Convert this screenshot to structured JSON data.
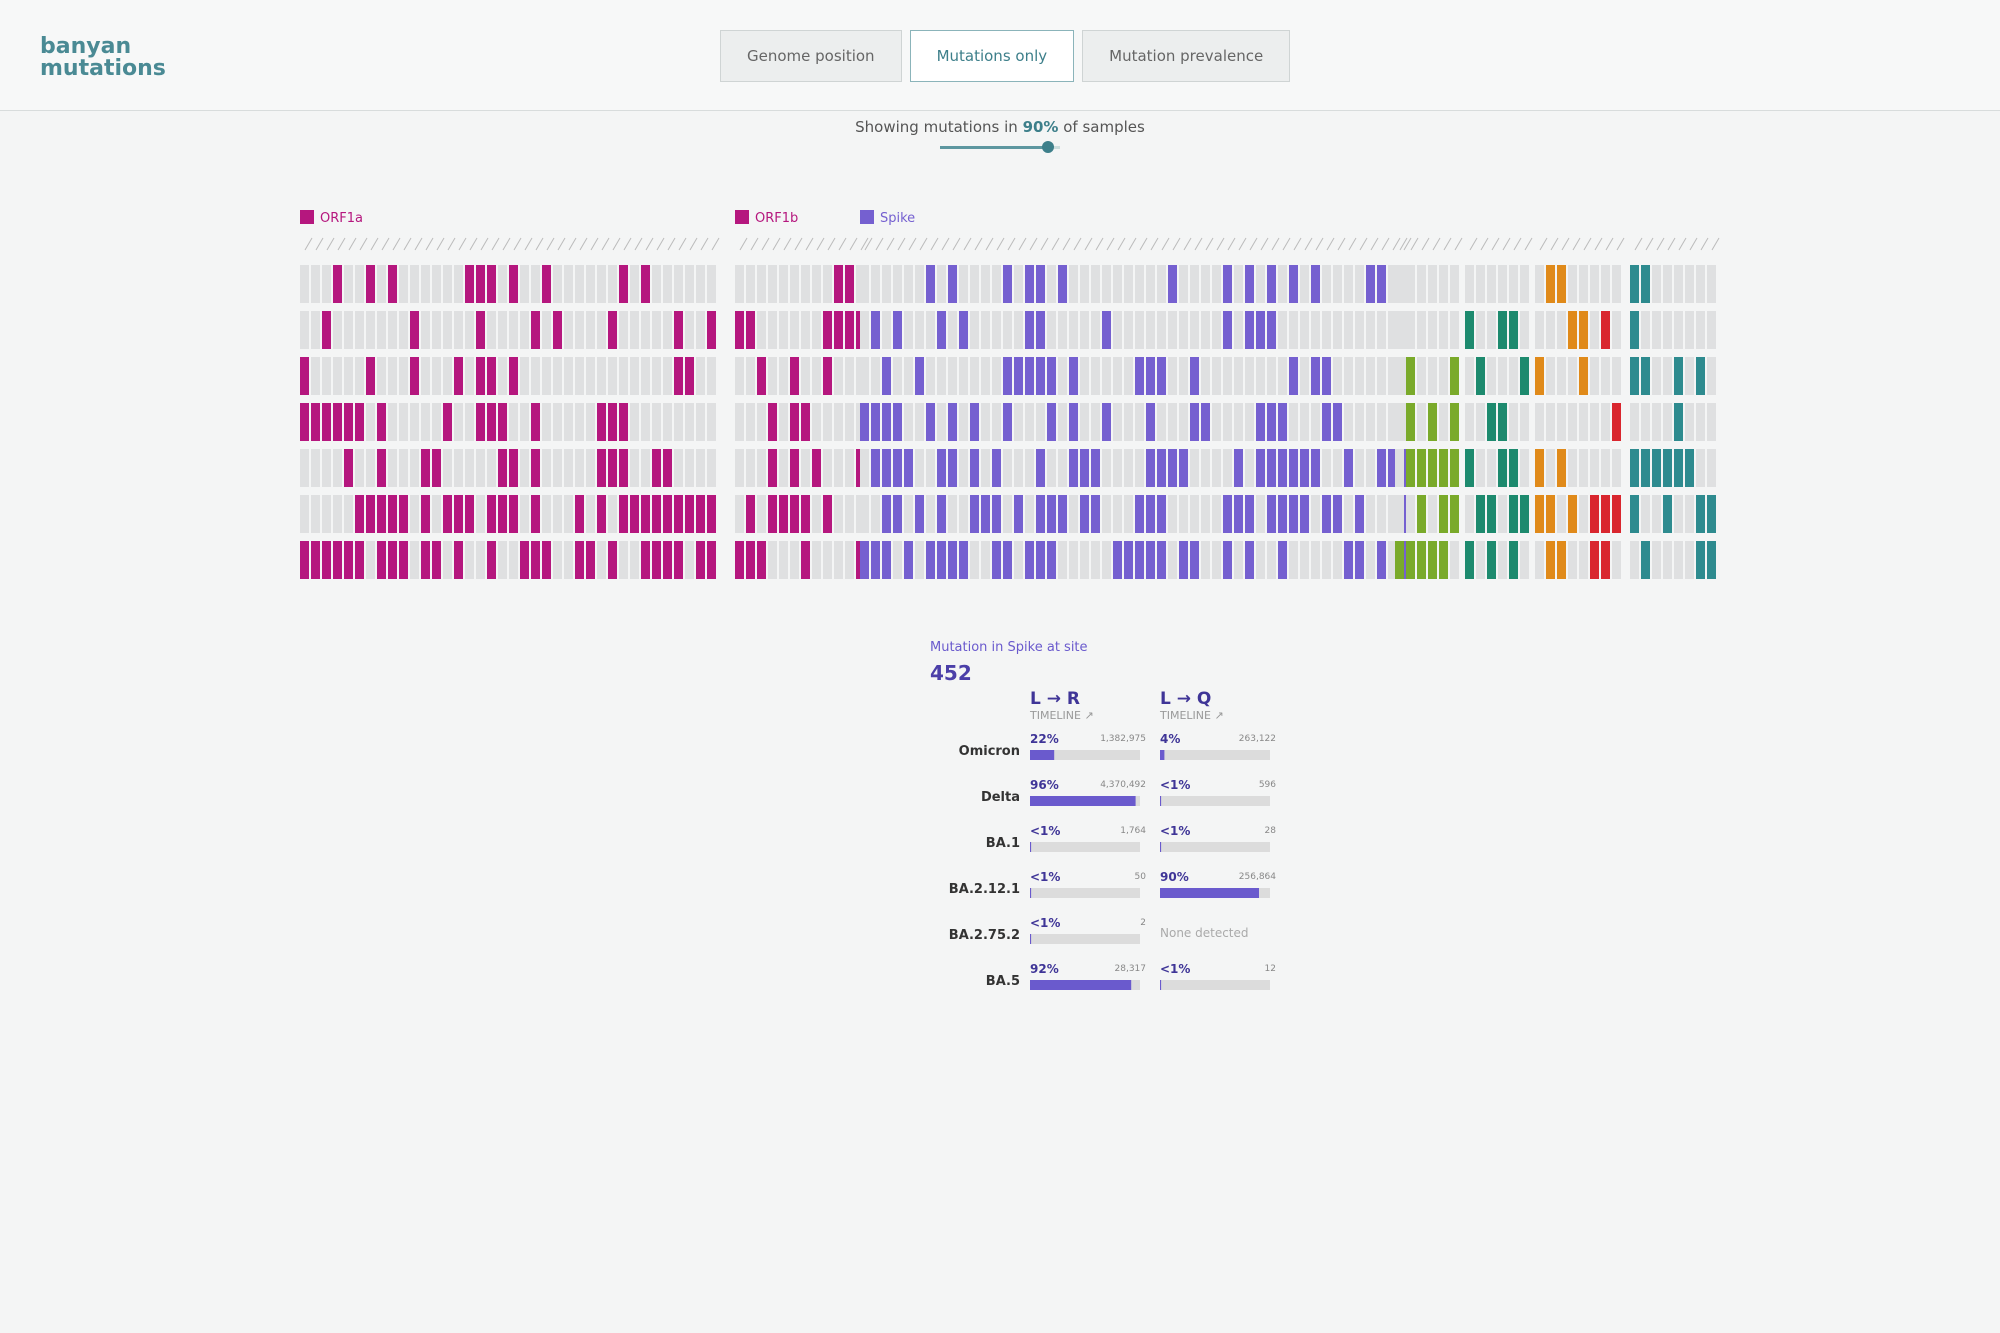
{
  "header": {
    "logo": "banyan mutations",
    "tabs": [
      "Genome position",
      "Mutations only",
      "Mutation prevalence"
    ],
    "active_tab": 1
  },
  "filter": {
    "prefix": "Showing mutations in",
    "value": "90%",
    "suffix": "of samples"
  },
  "genes": [
    "ORF1a",
    "ORF1b",
    "Spike"
  ],
  "detail": {
    "title": "Mutation in Spike at site",
    "site": "452",
    "lineages": [
      "Omicron",
      "Delta",
      "BA.1",
      "BA.2.12.1",
      "BA.2.75.2",
      "BA.5"
    ],
    "changes": [
      {
        "label": "L → R",
        "timeline": "TIMELINE ↗",
        "stats": [
          {
            "share": {
              "value": 22,
              "label": "22%"
            },
            "count": "1,382,975"
          },
          {
            "share": {
              "value": 96,
              "label": "96%"
            },
            "count": "4,370,492"
          },
          {
            "share": {
              "value": 1,
              "label": "<1%"
            },
            "count": "1,764"
          },
          {
            "share": {
              "value": 1,
              "label": "<1%"
            },
            "count": "50"
          },
          {
            "share": {
              "value": 1,
              "label": "<1%"
            },
            "count": "2"
          },
          {
            "share": {
              "value": 92,
              "label": "92%"
            },
            "count": "28,317"
          }
        ]
      },
      {
        "label": "L → Q",
        "timeline": "TIMELINE ↗",
        "stats": [
          {
            "share": {
              "value": 4,
              "label": "4%"
            },
            "count": "263,122"
          },
          {
            "share": {
              "value": 1,
              "label": "<1%"
            },
            "count": "596"
          },
          {
            "share": {
              "value": 1,
              "label": "<1%"
            },
            "count": "28"
          },
          {
            "share": {
              "value": 90,
              "label": "90%"
            },
            "count": "256,864"
          },
          {
            "note": "None detected"
          },
          {
            "share": {
              "value": 1,
              "label": "<1%"
            },
            "count": "12"
          }
        ]
      }
    ]
  }
}
